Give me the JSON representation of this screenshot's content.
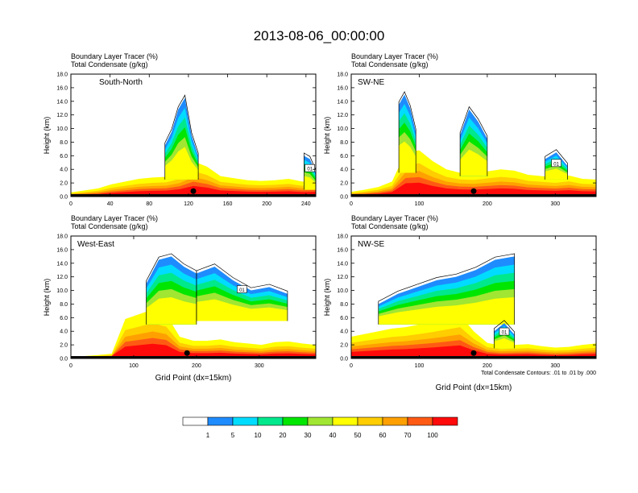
{
  "title": "2013-08-06_00:00:00",
  "colorbar": {
    "colors": [
      "#ffffff",
      "#1e8cff",
      "#00dcff",
      "#00e88c",
      "#00e600",
      "#a0e632",
      "#ffff00",
      "#ffcd00",
      "#ffa000",
      "#ff5a14",
      "#ff0a0a"
    ],
    "labels": [
      "1",
      "5",
      "10",
      "20",
      "30",
      "40",
      "50",
      "60",
      "70",
      "100"
    ]
  },
  "chart_data": [
    {
      "type": "heatmap",
      "name": "South-North",
      "subtitle_lines": [
        "Boundary Layer Tracer   (%)",
        "Total Condensate   (g/kg)"
      ],
      "section_label": "South-North",
      "ylabel": "Height (km)",
      "xlabel": "",
      "xlim": [
        0,
        250
      ],
      "ylim": [
        0,
        18
      ],
      "xticks": [
        0,
        40,
        80,
        120,
        160,
        200,
        240
      ],
      "yticks": [
        "0.0",
        "2.0",
        "4.0",
        "6.0",
        "8.0",
        "10.0",
        "12.0",
        "14.0",
        "16.0",
        "18.0"
      ],
      "tracer_top_km": [
        0.6,
        0.9,
        1.2,
        1.8,
        2.2,
        2.6,
        2.8,
        2.9,
        3.6,
        5.2,
        4.4,
        3.0,
        2.7,
        2.4,
        2.3,
        2.4,
        2.6,
        2.2,
        2.3
      ],
      "plumes": [
        {
          "x": [
            96,
            130
          ],
          "bottom": 2.5,
          "top": [
            7.5,
            9.5,
            12.8,
            14.5,
            9.0,
            6.0
          ]
        },
        {
          "x": [
            238,
            250
          ],
          "bottom": 1.0,
          "top": [
            6.0,
            5.5,
            3.5
          ]
        }
      ],
      "contour_label": "01",
      "marker_x": 125
    },
    {
      "type": "heatmap",
      "name": "SW-NE",
      "subtitle_lines": [
        "Boundary Layer Tracer   (%)",
        "Total Condensate   (g/kg)"
      ],
      "section_label": "SW-NE",
      "ylabel": "Height (km)",
      "xlabel": "",
      "xlim": [
        0,
        360
      ],
      "ylim": [
        0,
        18
      ],
      "xticks": [
        0,
        100,
        200,
        300
      ],
      "yticks": [
        "0.0",
        "2.0",
        "4.0",
        "6.0",
        "8.0",
        "10.0",
        "12.0",
        "14.0",
        "16.0",
        "18.0"
      ],
      "tracer_top_km": [
        0.7,
        1.0,
        1.4,
        2.2,
        6.5,
        6.8,
        5.2,
        4.0,
        3.5,
        3.4,
        3.7,
        4.0,
        3.8,
        3.2,
        3.0,
        2.8,
        3.1,
        2.6,
        2.5
      ],
      "plumes": [
        {
          "x": [
            70,
            95
          ],
          "bottom": 3.5,
          "top": [
            13.5,
            15.0,
            13.0,
            9.5
          ]
        },
        {
          "x": [
            160,
            200
          ],
          "bottom": 3.0,
          "top": [
            9.0,
            12.8,
            11.0,
            8.5
          ]
        },
        {
          "x": [
            285,
            318
          ],
          "bottom": 2.5,
          "top": [
            5.5,
            6.5,
            4.5
          ]
        }
      ],
      "contour_label": "01",
      "marker_x": 180
    },
    {
      "type": "heatmap",
      "name": "West-East",
      "subtitle_lines": [
        "Boundary Layer Tracer   (%)",
        "Total Condensate   (g/kg)"
      ],
      "section_label": "West-East",
      "ylabel": "Height (km)",
      "xlabel": "Grid Point (dx=15km)",
      "xlim": [
        0,
        390
      ],
      "ylim": [
        0,
        18
      ],
      "xticks": [
        0,
        100,
        200,
        300
      ],
      "yticks": [
        "0.0",
        "2.0",
        "4.0",
        "6.0",
        "8.0",
        "10.0",
        "12.0",
        "14.0",
        "16.0",
        "18.0"
      ],
      "tracer_top_km": [
        0.0,
        0.0,
        0.5,
        0.7,
        5.8,
        6.5,
        7.2,
        6.5,
        3.2,
        2.6,
        2.6,
        2.8,
        2.4,
        2.2,
        2.0,
        2.4,
        2.5,
        2.2,
        2.0
      ],
      "plumes": [
        {
          "x": [
            120,
            200
          ],
          "bottom": 5.0,
          "top": [
            11.0,
            14.5,
            15.0,
            13.5,
            12.5
          ]
        },
        {
          "x": [
            200,
            345
          ],
          "bottom": 5.5,
          "top": [
            12.5,
            13.5,
            11.5,
            10.0,
            10.5,
            9.5
          ]
        }
      ],
      "contour_label": "01",
      "marker_x": 185
    },
    {
      "type": "heatmap",
      "name": "NW-SE",
      "subtitle_lines": [
        "Boundary Layer Tracer   (%)",
        "Total Condensate   (g/kg)"
      ],
      "section_label": "NW-SE",
      "ylabel": "Height (km)",
      "xlabel": "Grid Point (dx=15km)",
      "xlim": [
        0,
        360
      ],
      "ylim": [
        0,
        18
      ],
      "xticks": [
        0,
        100,
        200,
        300
      ],
      "yticks": [
        "0.0",
        "2.0",
        "4.0",
        "6.0",
        "8.0",
        "10.0",
        "12.0",
        "14.0",
        "16.0",
        "18.0"
      ],
      "tracer_top_km": [
        3.2,
        3.6,
        4.0,
        4.4,
        4.6,
        5.0,
        5.4,
        5.9,
        6.4,
        4.0,
        2.3,
        1.9,
        2.0,
        2.1,
        1.8,
        1.6,
        1.7,
        2.0,
        2.2
      ],
      "plumes": [
        {
          "x": [
            40,
            240
          ],
          "bottom": 5.0,
          "top": [
            8.0,
            9.5,
            10.5,
            11.5,
            12.0,
            13.0,
            14.5,
            15.0
          ]
        },
        {
          "x": [
            210,
            240
          ],
          "bottom": 1.5,
          "top": [
            4.0,
            5.2,
            3.5
          ]
        }
      ],
      "contour_label": "01",
      "marker_x": 180,
      "footnote": "Total Condensate Contours: .01 to .01 by .000"
    }
  ]
}
